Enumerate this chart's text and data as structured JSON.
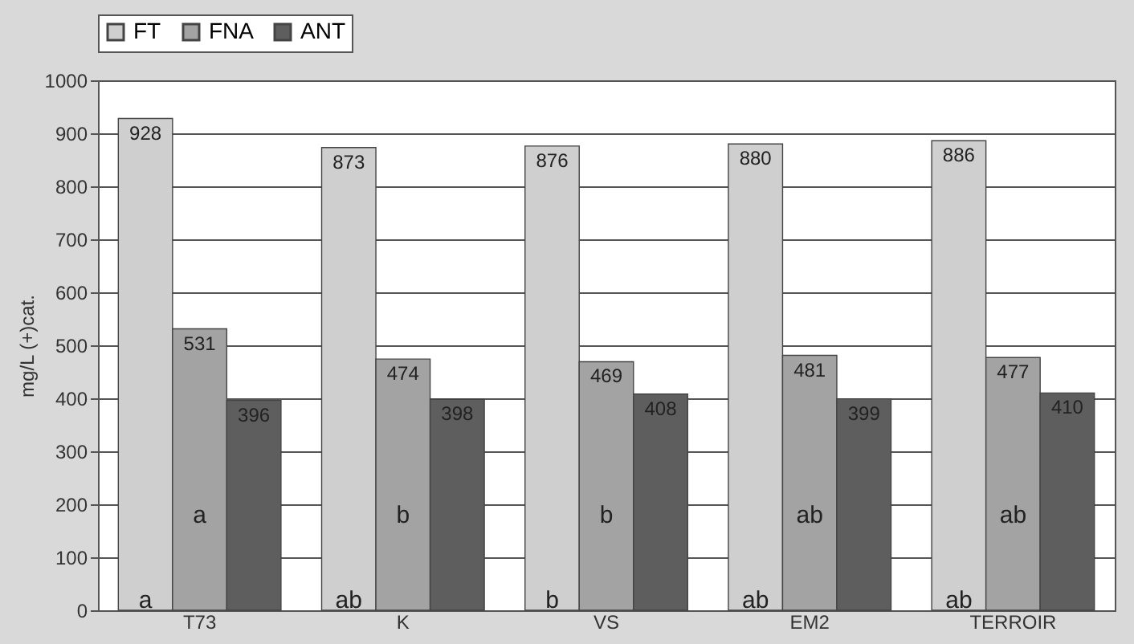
{
  "chart_data": {
    "type": "bar",
    "ylabel": "mg/L (+)cat.",
    "categories": [
      "T73",
      "K",
      "VS",
      "EM2",
      "TERROIR"
    ],
    "series": [
      {
        "name": "FT",
        "color": "#cfcfcf",
        "values": [
          928,
          873,
          876,
          880,
          886
        ]
      },
      {
        "name": "FNA",
        "color": "#a3a3a3",
        "values": [
          531,
          474,
          469,
          481,
          477
        ]
      },
      {
        "name": "ANT",
        "color": "#5e5e5e",
        "values": [
          396,
          398,
          408,
          399,
          410
        ]
      }
    ],
    "ylim": [
      0,
      1000
    ],
    "yticks": [
      0,
      100,
      200,
      300,
      400,
      500,
      600,
      700,
      800,
      900,
      1000
    ],
    "grid": "y",
    "legend": "top",
    "data_labels": true,
    "annotations": [
      "a",
      "a",
      "ab",
      "b",
      "b",
      "b",
      "ab",
      "ab",
      "ab",
      "ab"
    ]
  }
}
